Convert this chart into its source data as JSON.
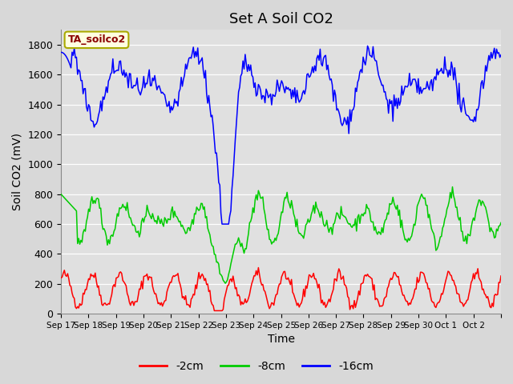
{
  "title": "Set A Soil CO2",
  "ylabel": "Soil CO2 (mV)",
  "xlabel": "Time",
  "legend_label": "TA_soilco2",
  "x_tick_labels": [
    "Sep 17",
    "Sep 18",
    "Sep 19",
    "Sep 20",
    "Sep 21",
    "Sep 22",
    "Sep 23",
    "Sep 24",
    "Sep 25",
    "Sep 26",
    "Sep 27",
    "Sep 28",
    "Sep 29",
    "Sep 30",
    "Oct 1",
    "Oct 2"
  ],
  "ylim": [
    0,
    1900
  ],
  "yticks": [
    0,
    200,
    400,
    600,
    800,
    1000,
    1200,
    1400,
    1600,
    1800
  ],
  "line_colors": {
    "red": "#ff0000",
    "green": "#00cc00",
    "blue": "#0000ff"
  },
  "legend_entries": [
    "-2cm",
    "-8cm",
    "-16cm"
  ],
  "fig_bg_color": "#d8d8d8",
  "plot_bg_color": "#e0e0e0",
  "grid_color": "#ffffff",
  "title_fontsize": 13,
  "axis_label_fontsize": 10,
  "n_points": 400,
  "n_days": 16
}
